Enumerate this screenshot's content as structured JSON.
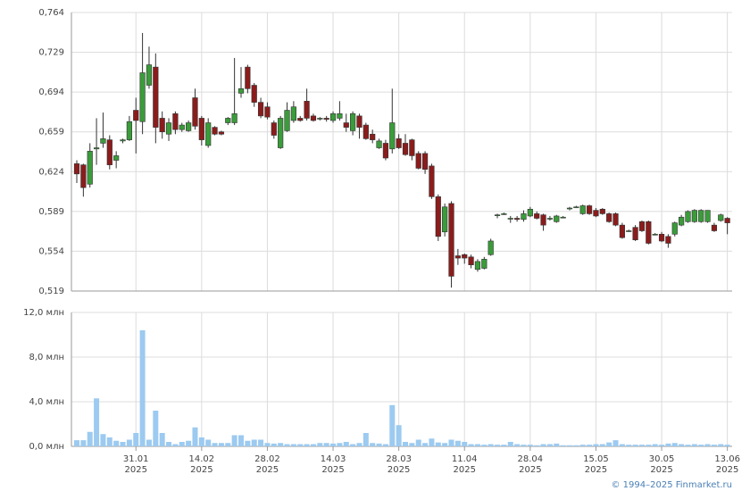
{
  "chart_data": [
    {
      "type": "candlestick",
      "up_color": "#3a9c3a",
      "down_color": "#8b1c1c",
      "grid": true,
      "ylim": [
        0.519,
        0.764
      ],
      "yticks": [
        {
          "value": 0.519,
          "label": "0,519"
        },
        {
          "value": 0.554,
          "label": "0,554"
        },
        {
          "value": 0.589,
          "label": "0,589"
        },
        {
          "value": 0.624,
          "label": "0,624"
        },
        {
          "value": 0.659,
          "label": "0,659"
        },
        {
          "value": 0.694,
          "label": "0,694"
        },
        {
          "value": 0.729,
          "label": "0,729"
        },
        {
          "value": 0.764,
          "label": "0,764"
        }
      ],
      "open": [
        0.631,
        0.63,
        0.613,
        0.644,
        0.649,
        0.652,
        0.634,
        0.651,
        0.652,
        0.678,
        0.668,
        0.7,
        0.716,
        0.671,
        0.657,
        0.675,
        0.661,
        0.66,
        0.689,
        0.671,
        0.647,
        0.663,
        0.659,
        0.667,
        0.667,
        0.693,
        0.716,
        0.7,
        0.685,
        0.681,
        0.667,
        0.645,
        0.66,
        0.669,
        0.671,
        0.686,
        0.673,
        0.671,
        0.671,
        0.669,
        0.671,
        0.667,
        0.66,
        0.673,
        0.665,
        0.657,
        0.645,
        0.649,
        0.644,
        0.653,
        0.649,
        0.652,
        0.64,
        0.64,
        0.629,
        0.602,
        0.571,
        0.596,
        0.55,
        0.551,
        0.549,
        0.538,
        0.539,
        0.551,
        0.586,
        0.587,
        0.583,
        0.583,
        0.582,
        0.585,
        0.587,
        0.586,
        0.583,
        0.58,
        0.584,
        0.592,
        0.593,
        0.587,
        0.594,
        0.59,
        0.591,
        0.587,
        0.587,
        0.577,
        0.572,
        0.575,
        0.58,
        0.58,
        0.569,
        0.569,
        0.567,
        0.569,
        0.577,
        0.58,
        0.58,
        0.58,
        0.58,
        0.577,
        0.581,
        0.583
      ],
      "high": [
        0.634,
        0.631,
        0.649,
        0.671,
        0.676,
        0.656,
        0.642,
        0.653,
        0.673,
        0.689,
        0.746,
        0.734,
        0.728,
        0.677,
        0.671,
        0.677,
        0.667,
        0.669,
        0.697,
        0.673,
        0.671,
        0.664,
        0.66,
        0.672,
        0.724,
        0.716,
        0.718,
        0.702,
        0.689,
        0.685,
        0.669,
        0.673,
        0.685,
        0.686,
        0.673,
        0.697,
        0.675,
        0.672,
        0.673,
        0.677,
        0.686,
        0.675,
        0.677,
        0.675,
        0.667,
        0.661,
        0.653,
        0.652,
        0.697,
        0.657,
        0.657,
        0.653,
        0.642,
        0.642,
        0.631,
        0.604,
        0.596,
        0.598,
        0.556,
        0.552,
        0.551,
        0.547,
        0.549,
        0.565,
        0.587,
        0.588,
        0.585,
        0.585,
        0.59,
        0.593,
        0.589,
        0.587,
        0.585,
        0.586,
        0.585,
        0.593,
        0.594,
        0.595,
        0.595,
        0.592,
        0.592,
        0.588,
        0.588,
        0.579,
        0.573,
        0.577,
        0.581,
        0.581,
        0.57,
        0.571,
        0.569,
        0.58,
        0.586,
        0.59,
        0.591,
        0.591,
        0.59,
        0.579,
        0.587,
        0.584
      ],
      "low": [
        0.614,
        0.602,
        0.61,
        0.63,
        0.645,
        0.626,
        0.627,
        0.649,
        0.651,
        0.64,
        0.657,
        0.697,
        0.649,
        0.653,
        0.651,
        0.657,
        0.659,
        0.659,
        0.661,
        0.647,
        0.645,
        0.656,
        0.656,
        0.665,
        0.665,
        0.689,
        0.693,
        0.681,
        0.671,
        0.67,
        0.653,
        0.644,
        0.659,
        0.667,
        0.668,
        0.669,
        0.668,
        0.669,
        0.668,
        0.667,
        0.669,
        0.659,
        0.656,
        0.653,
        0.652,
        0.649,
        0.644,
        0.634,
        0.64,
        0.644,
        0.638,
        0.634,
        0.626,
        0.622,
        0.6,
        0.563,
        0.567,
        0.522,
        0.542,
        0.543,
        0.539,
        0.536,
        0.538,
        0.55,
        0.583,
        0.586,
        0.579,
        0.58,
        0.58,
        0.584,
        0.582,
        0.572,
        0.581,
        0.579,
        0.584,
        0.59,
        0.592,
        0.586,
        0.586,
        0.584,
        0.586,
        0.579,
        0.576,
        0.565,
        0.571,
        0.563,
        0.571,
        0.56,
        0.568,
        0.562,
        0.557,
        0.567,
        0.576,
        0.579,
        0.579,
        0.579,
        0.579,
        0.571,
        0.58,
        0.569
      ],
      "close": [
        0.622,
        0.61,
        0.642,
        0.645,
        0.653,
        0.63,
        0.638,
        0.652,
        0.668,
        0.669,
        0.711,
        0.718,
        0.663,
        0.659,
        0.667,
        0.661,
        0.665,
        0.667,
        0.664,
        0.652,
        0.667,
        0.657,
        0.657,
        0.671,
        0.675,
        0.697,
        0.697,
        0.685,
        0.673,
        0.672,
        0.656,
        0.671,
        0.678,
        0.681,
        0.669,
        0.671,
        0.669,
        0.671,
        0.67,
        0.675,
        0.675,
        0.663,
        0.675,
        0.663,
        0.653,
        0.652,
        0.651,
        0.636,
        0.667,
        0.645,
        0.639,
        0.638,
        0.627,
        0.626,
        0.602,
        0.567,
        0.593,
        0.532,
        0.548,
        0.548,
        0.542,
        0.545,
        0.547,
        0.563,
        0.586,
        0.587,
        0.583,
        0.582,
        0.587,
        0.591,
        0.583,
        0.577,
        0.583,
        0.585,
        0.584,
        0.592,
        0.593,
        0.594,
        0.587,
        0.585,
        0.587,
        0.58,
        0.577,
        0.566,
        0.572,
        0.564,
        0.572,
        0.561,
        0.569,
        0.563,
        0.561,
        0.579,
        0.584,
        0.589,
        0.59,
        0.59,
        0.59,
        0.572,
        0.586,
        0.579
      ]
    },
    {
      "type": "bar",
      "color": "#9ccaf0",
      "grid": true,
      "ylim": [
        0,
        12
      ],
      "yticks": [
        {
          "value": 0,
          "label": "0,0 млн"
        },
        {
          "value": 4,
          "label": "4,0 млн"
        },
        {
          "value": 8,
          "label": "8,0 млн"
        },
        {
          "value": 12,
          "label": "12,0 млн"
        }
      ],
      "xticks": [
        {
          "value": 9,
          "label": "31.01",
          "year": "2025"
        },
        {
          "value": 19,
          "label": "14.02",
          "year": "2025"
        },
        {
          "value": 29,
          "label": "28.02",
          "year": "2025"
        },
        {
          "value": 39,
          "label": "14.03",
          "year": "2025"
        },
        {
          "value": 49,
          "label": "28.03",
          "year": "2025"
        },
        {
          "value": 59,
          "label": "11.04",
          "year": "2025"
        },
        {
          "value": 69,
          "label": "28.04",
          "year": "2025"
        },
        {
          "value": 79,
          "label": "15.05",
          "year": "2025"
        },
        {
          "value": 89,
          "label": "30.05",
          "year": "2025"
        },
        {
          "value": 99,
          "label": "13.06",
          "year": "2025"
        }
      ],
      "values": [
        0.55,
        0.55,
        1.3,
        4.3,
        1.1,
        0.8,
        0.5,
        0.4,
        0.6,
        1.2,
        10.4,
        0.6,
        3.2,
        1.2,
        0.4,
        0.2,
        0.4,
        0.5,
        1.7,
        0.8,
        0.6,
        0.3,
        0.3,
        0.3,
        1.0,
        1.0,
        0.5,
        0.6,
        0.6,
        0.3,
        0.25,
        0.3,
        0.2,
        0.2,
        0.2,
        0.2,
        0.2,
        0.3,
        0.3,
        0.25,
        0.3,
        0.4,
        0.2,
        0.3,
        1.2,
        0.3,
        0.25,
        0.2,
        3.7,
        1.9,
        0.4,
        0.3,
        0.6,
        0.3,
        0.7,
        0.35,
        0.3,
        0.6,
        0.5,
        0.4,
        0.2,
        0.2,
        0.15,
        0.2,
        0.15,
        0.15,
        0.4,
        0.2,
        0.15,
        0.15,
        0.1,
        0.2,
        0.2,
        0.25,
        0.1,
        0.1,
        0.1,
        0.15,
        0.15,
        0.2,
        0.2,
        0.35,
        0.55,
        0.2,
        0.15,
        0.15,
        0.15,
        0.15,
        0.2,
        0.15,
        0.25,
        0.3,
        0.2,
        0.15,
        0.2,
        0.15,
        0.2,
        0.15,
        0.2,
        0.15
      ]
    }
  ],
  "footer": "© 1994–2025 Finmarket.ru"
}
